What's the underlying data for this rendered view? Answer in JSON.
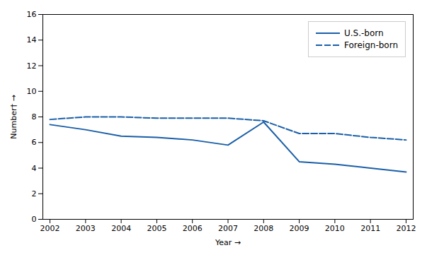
{
  "chart_data": {
    "type": "line",
    "x": [
      2002,
      2003,
      2004,
      2005,
      2006,
      2007,
      2008,
      2009,
      2010,
      2011,
      2012
    ],
    "series": [
      {
        "name": "U.S.-born",
        "color": "#1a5fa8",
        "line_style": "solid",
        "values": [
          7.4,
          7.0,
          6.5,
          6.4,
          6.2,
          5.8,
          7.6,
          4.5,
          4.3,
          4.0,
          3.7
        ]
      },
      {
        "name": "Foreign-born",
        "color": "#1a5fa8",
        "line_style": "dashed",
        "values": [
          7.8,
          8.0,
          8.0,
          7.9,
          7.9,
          7.9,
          7.7,
          6.7,
          6.7,
          6.4,
          6.2
        ]
      }
    ],
    "xlabel": "Year",
    "ylabel": "Number†",
    "xlim": [
      2001.8,
      2012.2
    ],
    "xticks": [
      2002,
      2003,
      2004,
      2005,
      2006,
      2007,
      2008,
      2009,
      2010,
      2011,
      2012
    ],
    "ylim": [
      0,
      16
    ],
    "yticks": [
      0,
      2,
      4,
      6,
      8,
      10,
      12,
      14,
      16
    ],
    "grid": false,
    "legend": "upper right"
  }
}
